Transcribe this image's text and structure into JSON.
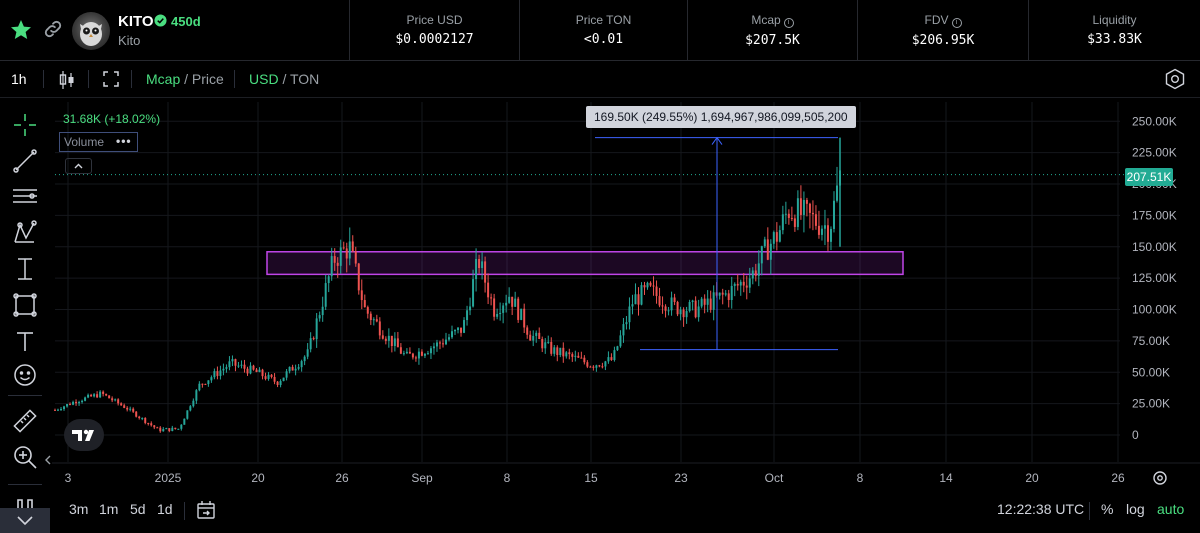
{
  "header": {
    "ticker": "KITO",
    "age": "450d",
    "name": "Kito",
    "stats": [
      {
        "label": "Price USD",
        "value": "$0.0002127",
        "info": false
      },
      {
        "label": "Price TON",
        "value": "<0.01",
        "info": false
      },
      {
        "label": "Mcap",
        "value": "$207.5K",
        "info": true
      },
      {
        "label": "FDV",
        "value": "$206.95K",
        "info": true
      },
      {
        "label": "Liquidity",
        "value": "$33.83K",
        "info": false
      }
    ]
  },
  "toolbar": {
    "interval": "1h",
    "mcap": "Mcap",
    "slash1": " / ",
    "price": "Price",
    "usd": "USD",
    "slash2": " / ",
    "ton": "TON"
  },
  "legend": {
    "change": "31.68K (+18.02%)",
    "volume": "Volume"
  },
  "measure_label": "169.50K (249.55%) 1,694,967,986,099,505,200",
  "last_price_label": "207.51K",
  "bottom": {
    "ranges": [
      "3m",
      "1m",
      "5d",
      "1d"
    ],
    "time": "12:22:38 UTC",
    "percent": "%",
    "log": "log",
    "auto": "auto"
  },
  "colors": {
    "up": "#26a69a",
    "down": "#ef5350",
    "accent": "#4ade80",
    "box": "#c045e8",
    "measure": "#3d63ff"
  },
  "chart_data": {
    "type": "candlestick",
    "y_ticks": [
      "250.00K",
      "225.00K",
      "200.00K",
      "175.00K",
      "150.00K",
      "125.00K",
      "100.00K",
      "75.00K",
      "50.00K",
      "25.00K",
      "0"
    ],
    "ylim": [
      0,
      260000
    ],
    "x_ticks": [
      "3",
      "2025",
      "20",
      "26",
      "Sep",
      "8",
      "15",
      "23",
      "Oct",
      "8",
      "14",
      "20",
      "26"
    ],
    "series": [
      {
        "name": "Mcap",
        "keypoints_k": [
          [
            0,
            20
          ],
          [
            0.04,
            27
          ],
          [
            0.09,
            33
          ],
          [
            0.14,
            21
          ],
          [
            0.2,
            4
          ],
          [
            0.24,
            5
          ],
          [
            0.28,
            40
          ],
          [
            0.34,
            57
          ],
          [
            0.39,
            50
          ],
          [
            0.43,
            42
          ],
          [
            0.49,
            65
          ],
          [
            0.54,
            140
          ],
          [
            0.57,
            150
          ],
          [
            0.6,
            100
          ],
          [
            0.64,
            80
          ],
          [
            0.68,
            62
          ],
          [
            0.74,
            72
          ],
          [
            0.79,
            85
          ],
          [
            0.82,
            140
          ],
          [
            0.85,
            100
          ],
          [
            0.88,
            112
          ],
          [
            0.92,
            80
          ],
          [
            0.96,
            68
          ],
          [
            1.0,
            62
          ],
          [
            1.04,
            56
          ],
          [
            1.08,
            60
          ],
          [
            1.12,
            108
          ],
          [
            1.15,
            115
          ],
          [
            1.2,
            102
          ],
          [
            1.24,
            100
          ],
          [
            1.3,
            112
          ],
          [
            1.35,
            128
          ],
          [
            1.38,
            150
          ],
          [
            1.4,
            160
          ],
          [
            1.42,
            180
          ],
          [
            1.45,
            175
          ],
          [
            1.5,
            165
          ],
          [
            1.52,
            207
          ]
        ]
      }
    ],
    "support_zone_k": [
      128,
      146
    ],
    "measure_from_k": 68,
    "measure_to_k": 237
  }
}
